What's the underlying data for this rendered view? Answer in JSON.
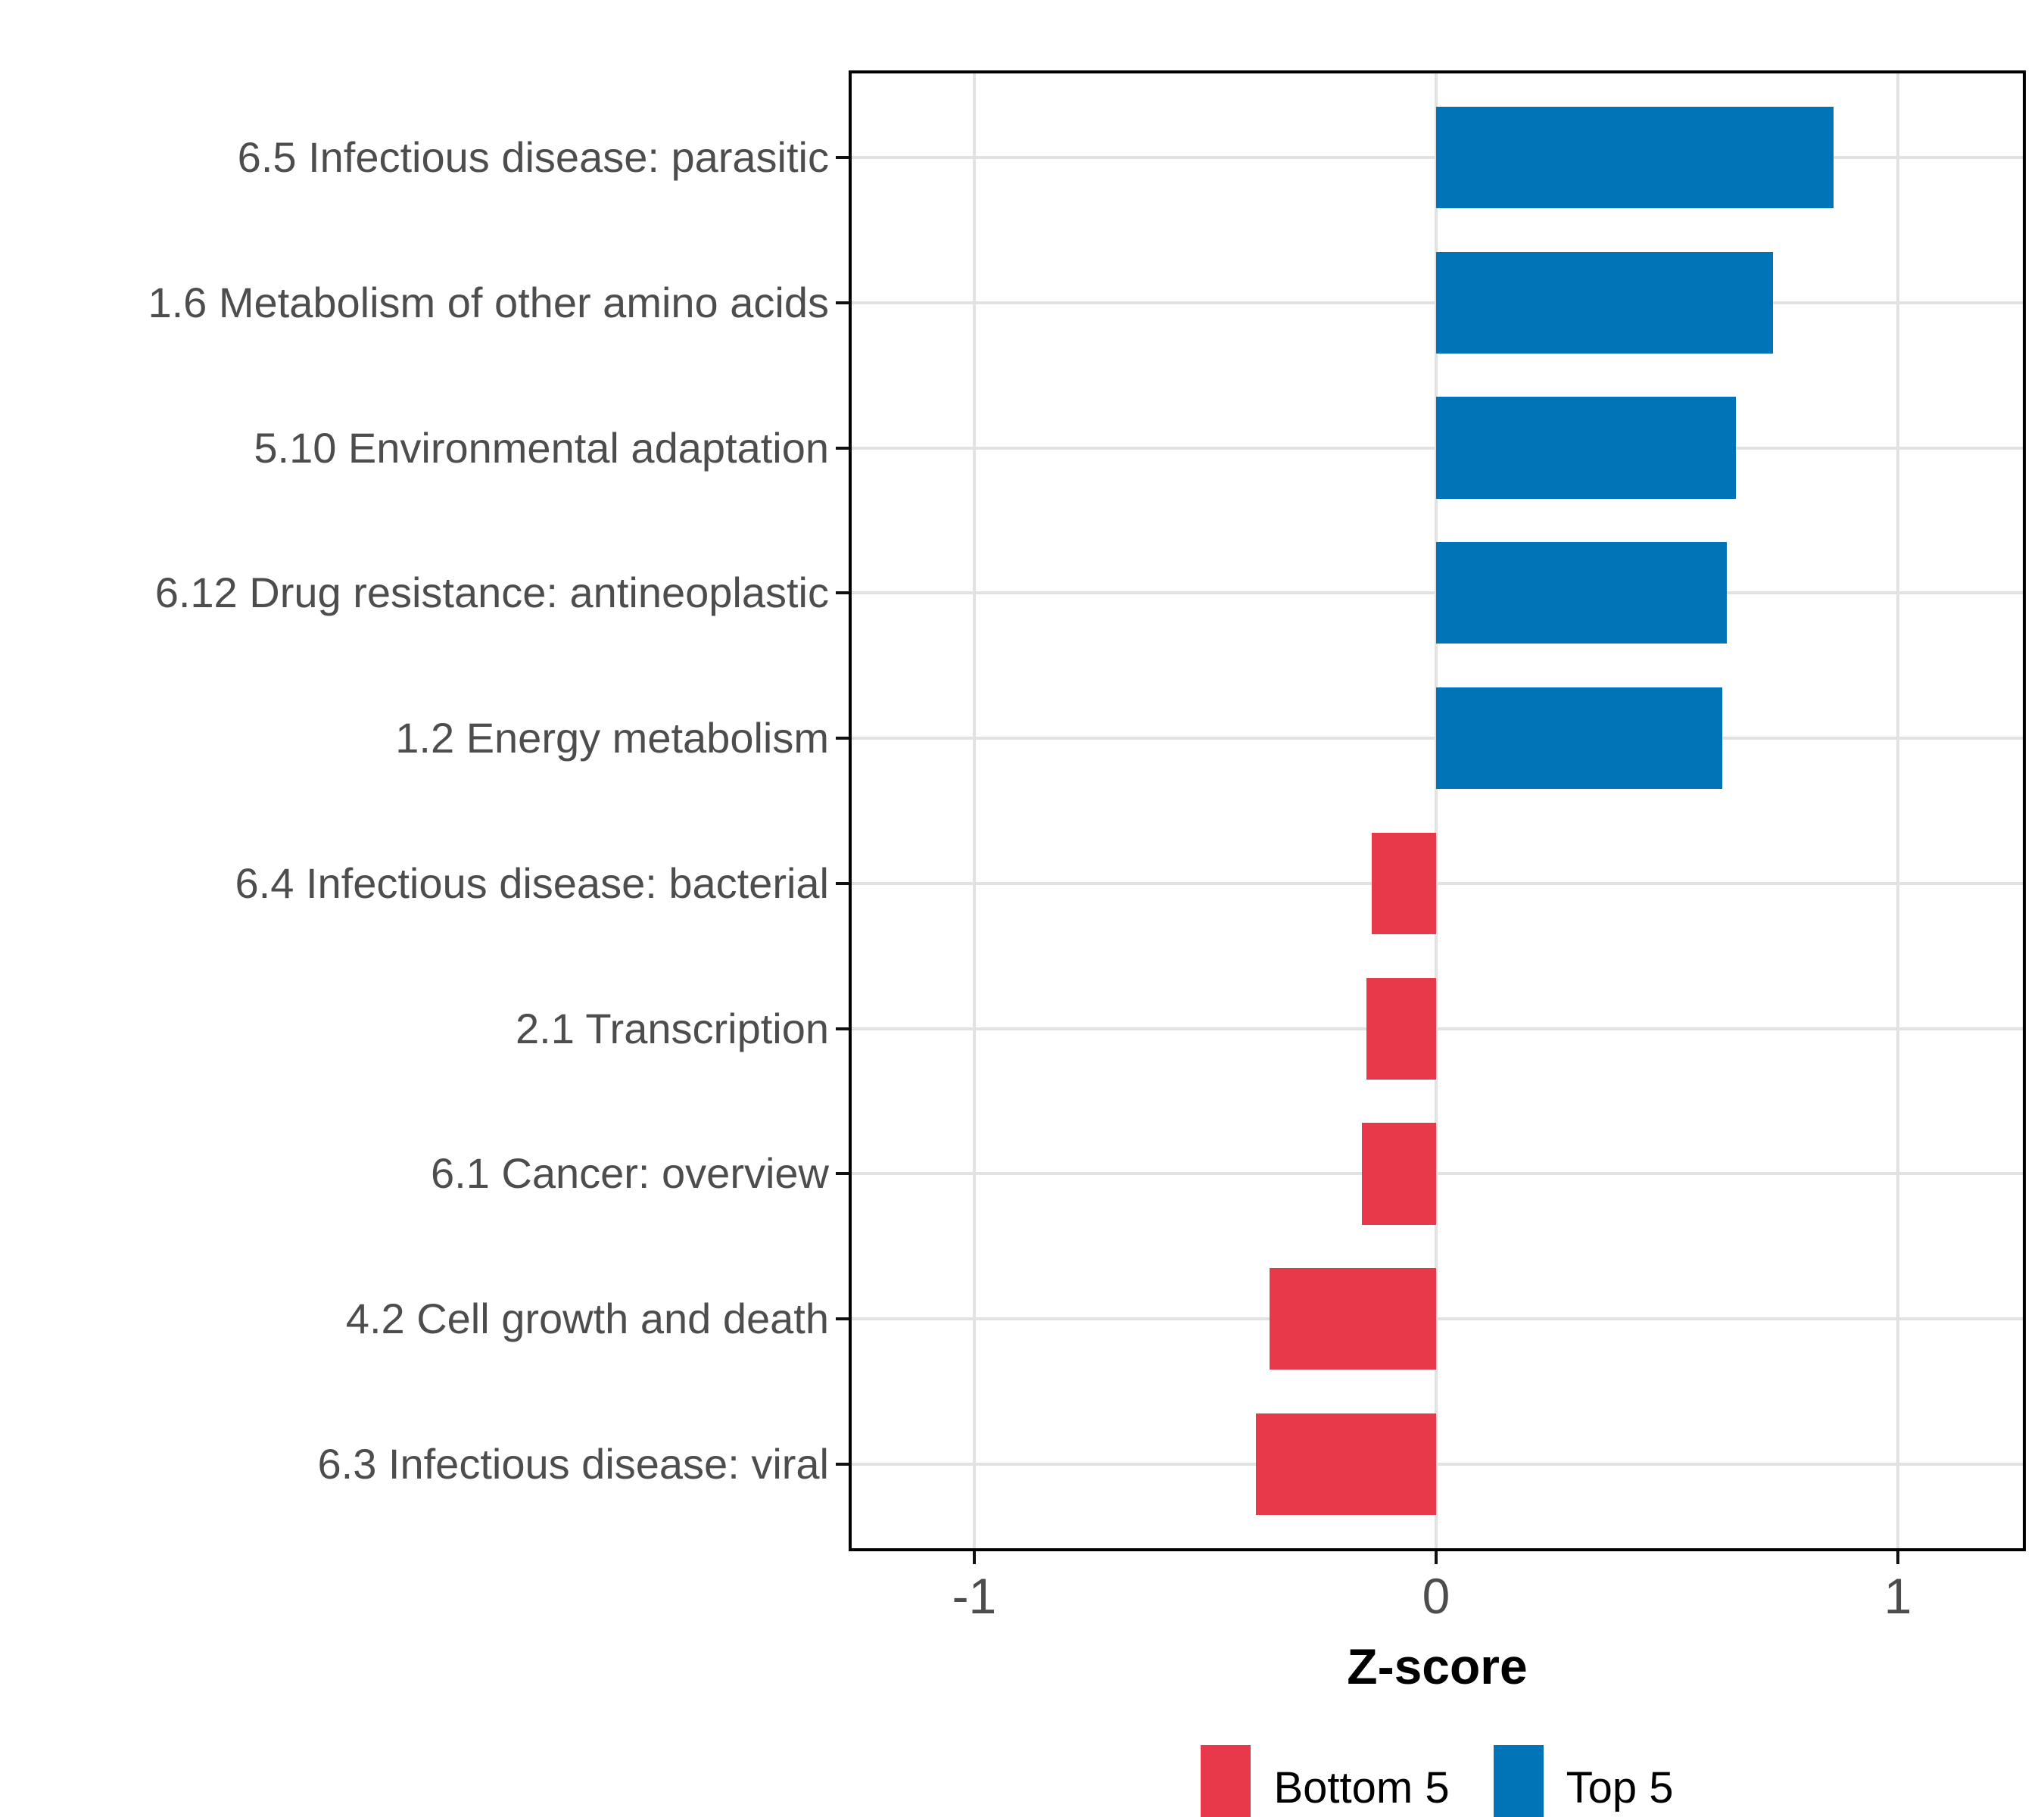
{
  "chart_data": {
    "type": "bar",
    "orientation": "horizontal",
    "xlabel": "Z-score",
    "ylabel": "",
    "categories": [
      "6.5 Infectious disease: parasitic",
      "1.6 Metabolism of other amino acids",
      "5.10 Environmental adaptation",
      "6.12 Drug resistance: antineoplastic",
      "1.2 Energy metabolism",
      "6.4 Infectious disease: bacterial",
      "2.1 Transcription",
      "6.1 Cancer: overview",
      "4.2 Cell growth and death",
      "6.3 Infectious disease: viral"
    ],
    "series": [
      {
        "name": "Top 5",
        "color": "#0074B6",
        "values": [
          0.86,
          0.73,
          0.65,
          0.63,
          0.62,
          null,
          null,
          null,
          null,
          null
        ]
      },
      {
        "name": "Bottom 5",
        "color": "#E7394A",
        "values": [
          null,
          null,
          null,
          null,
          null,
          -0.14,
          -0.15,
          -0.16,
          -0.36,
          -0.39
        ]
      }
    ],
    "values_flat": [
      0.86,
      0.73,
      0.65,
      0.63,
      0.62,
      -0.14,
      -0.15,
      -0.16,
      -0.36,
      -0.39
    ],
    "group_of_bar": [
      "Top 5",
      "Top 5",
      "Top 5",
      "Top 5",
      "Top 5",
      "Bottom 5",
      "Bottom 5",
      "Bottom 5",
      "Bottom 5",
      "Bottom 5"
    ],
    "xlim": [
      -1.272,
      1.277
    ],
    "x_ticks": [
      {
        "value": -1,
        "label": "-1"
      },
      {
        "value": 0,
        "label": "0"
      },
      {
        "value": 1,
        "label": "1"
      }
    ],
    "grid": "major-only",
    "legend_position": "bottom",
    "legend": [
      {
        "label": "Bottom 5",
        "color": "#E7394A"
      },
      {
        "label": "Top 5",
        "color": "#0074B6"
      }
    ],
    "colors": {
      "top5_blue": "#0074B6",
      "bottom5_red": "#E7394A",
      "gridline": "#E2E2E2",
      "axis_text": "#4D4D4D",
      "panel_border": "#000000"
    }
  }
}
